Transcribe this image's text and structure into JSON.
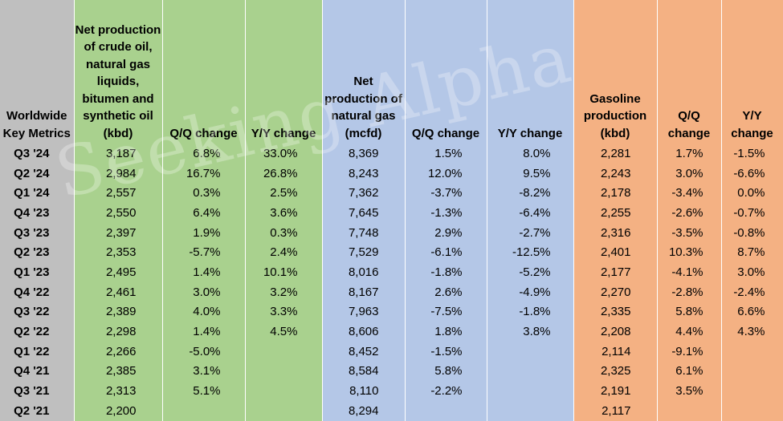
{
  "chart_data": {
    "type": "table",
    "columns": [
      "Worldwide Key Metrics",
      "Net production of crude oil, natural gas liquids, bitumen and synthetic oil (kbd)",
      "Q/Q change",
      "Y/Y change",
      "Net production of natural gas (mcfd)",
      "Q/Q change",
      "Y/Y change",
      "Gasoline production (kbd)",
      "Q/Q change",
      "Y/Y change"
    ],
    "rows": [
      [
        "Q3 '24",
        "3,187",
        "6.8%",
        "33.0%",
        "8,369",
        "1.5%",
        "8.0%",
        "2,281",
        "1.7%",
        "-1.5%"
      ],
      [
        "Q2 '24",
        "2,984",
        "16.7%",
        "26.8%",
        "8,243",
        "12.0%",
        "9.5%",
        "2,243",
        "3.0%",
        "-6.6%"
      ],
      [
        "Q1 '24",
        "2,557",
        "0.3%",
        "2.5%",
        "7,362",
        "-3.7%",
        "-8.2%",
        "2,178",
        "-3.4%",
        "0.0%"
      ],
      [
        "Q4 '23",
        "2,550",
        "6.4%",
        "3.6%",
        "7,645",
        "-1.3%",
        "-6.4%",
        "2,255",
        "-2.6%",
        "-0.7%"
      ],
      [
        "Q3 '23",
        "2,397",
        "1.9%",
        "0.3%",
        "7,748",
        "2.9%",
        "-2.7%",
        "2,316",
        "-3.5%",
        "-0.8%"
      ],
      [
        "Q2 '23",
        "2,353",
        "-5.7%",
        "2.4%",
        "7,529",
        "-6.1%",
        "-12.5%",
        "2,401",
        "10.3%",
        "8.7%"
      ],
      [
        "Q1 '23",
        "2,495",
        "1.4%",
        "10.1%",
        "8,016",
        "-1.8%",
        "-5.2%",
        "2,177",
        "-4.1%",
        "3.0%"
      ],
      [
        "Q4 '22",
        "2,461",
        "3.0%",
        "3.2%",
        "8,167",
        "2.6%",
        "-4.9%",
        "2,270",
        "-2.8%",
        "-2.4%"
      ],
      [
        "Q3 '22",
        "2,389",
        "4.0%",
        "3.3%",
        "7,963",
        "-7.5%",
        "-1.8%",
        "2,335",
        "5.8%",
        "6.6%"
      ],
      [
        "Q2 '22",
        "2,298",
        "1.4%",
        "4.5%",
        "8,606",
        "1.8%",
        "3.8%",
        "2,208",
        "4.4%",
        "4.3%"
      ],
      [
        "Q1 '22",
        "2,266",
        "-5.0%",
        "",
        "8,452",
        "-1.5%",
        "",
        "2,114",
        "-9.1%",
        ""
      ],
      [
        "Q4 '21",
        "2,385",
        "3.1%",
        "",
        "8,584",
        "5.8%",
        "",
        "2,325",
        "6.1%",
        ""
      ],
      [
        "Q3 '21",
        "2,313",
        "5.1%",
        "",
        "8,110",
        "-2.2%",
        "",
        "2,191",
        "3.5%",
        ""
      ],
      [
        "Q2 '21",
        "2,200",
        "",
        "",
        "8,294",
        "",
        "",
        "2,117",
        "",
        ""
      ]
    ]
  },
  "colors": {
    "label_column": "#bfbfbf",
    "oil_group": "#a9d18e",
    "gas_group": "#b4c7e7",
    "gasoline_group": "#f4b183"
  },
  "watermark": "Seeking Alpha"
}
